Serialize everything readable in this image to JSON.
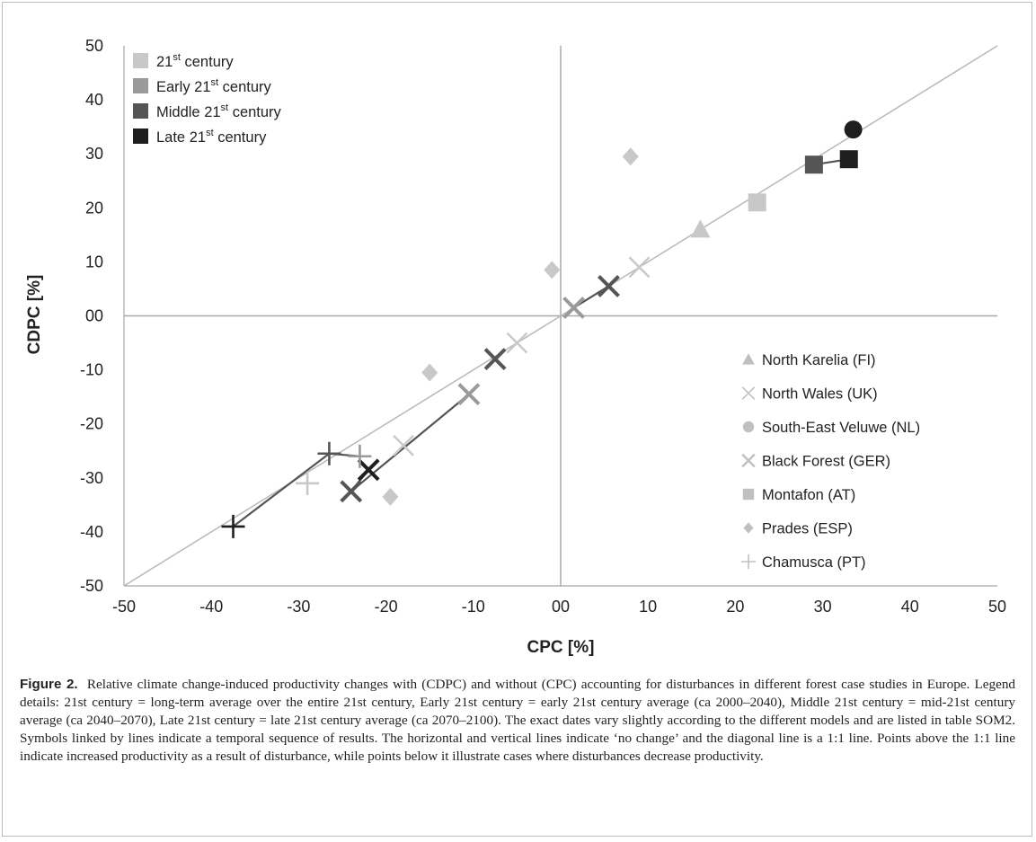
{
  "chart_data": {
    "type": "scatter",
    "xlabel": "CPC [%]",
    "ylabel": "CDPC [%]",
    "xlim": [
      -50,
      50
    ],
    "ylim": [
      -50,
      50
    ],
    "x_ticks": [
      "-50",
      "-40",
      "-30",
      "-20",
      "-10",
      "00",
      "10",
      "20",
      "30",
      "40",
      "50"
    ],
    "y_ticks": [
      "50",
      "40",
      "30",
      "20",
      "10",
      "00",
      "-10",
      "-20",
      "-30",
      "-40",
      "-50"
    ],
    "reference_lines": [
      "x = 0",
      "y = 0",
      "y = x"
    ],
    "period_legend": [
      {
        "base": "21",
        "sup": "st",
        "rest": " century",
        "color": "#c8c8c8"
      },
      {
        "base": "Early 21",
        "sup": "st",
        "rest": " century",
        "color": "#9a9a9a"
      },
      {
        "base": "Middle 21",
        "sup": "st",
        "rest": " century",
        "color": "#555555"
      },
      {
        "base": "Late 21",
        "sup": "st",
        "rest": " century",
        "color": "#1e1e1e"
      }
    ],
    "case_legend": [
      {
        "label": "North Karelia (FI)",
        "symbol": "triangle"
      },
      {
        "label": "North Wales (UK)",
        "symbol": "x-thin"
      },
      {
        "label": "South-East Veluwe (NL)",
        "symbol": "circle"
      },
      {
        "label": "Black Forest (GER)",
        "symbol": "x-thick"
      },
      {
        "label": "Montafon (AT)",
        "symbol": "square"
      },
      {
        "label": "Prades (ESP)",
        "symbol": "diamond"
      },
      {
        "label": "Chamusca (PT)",
        "symbol": "plus"
      }
    ],
    "points": [
      {
        "case": "North Karelia (FI)",
        "symbol": "triangle",
        "period": "21st century",
        "x": 16,
        "y": 16
      },
      {
        "case": "North Wales (UK)",
        "symbol": "x-thin",
        "period": "21st century",
        "x": 9,
        "y": 9
      },
      {
        "case": "North Wales (UK)",
        "symbol": "x-thin",
        "period": "21st century",
        "x": -5,
        "y": -5
      },
      {
        "case": "North Wales (UK)",
        "symbol": "x-thin",
        "period": "21st century",
        "x": -18,
        "y": -24
      },
      {
        "case": "South-East Veluwe (NL)",
        "symbol": "circle",
        "period": "Late 21st century",
        "x": 33.5,
        "y": 34.5
      },
      {
        "case": "Black Forest (GER)",
        "symbol": "x-thick",
        "period": "Early 21st century",
        "x": 1.5,
        "y": 1.5
      },
      {
        "case": "Black Forest (GER)",
        "symbol": "x-thick",
        "period": "Middle 21st century",
        "x": 5.5,
        "y": 5.5
      },
      {
        "case": "Black Forest (GER)",
        "symbol": "x-thick",
        "period": "Early 21st century",
        "x": -10.5,
        "y": -14.5
      },
      {
        "case": "Black Forest (GER)",
        "symbol": "x-thick",
        "period": "Middle 21st century",
        "x": -7.5,
        "y": -8
      },
      {
        "case": "Black Forest (GER)",
        "symbol": "x-thick",
        "period": "Middle 21st century",
        "x": -24,
        "y": -32.5
      },
      {
        "case": "Black Forest (GER)",
        "symbol": "x-thick",
        "period": "Late 21st century",
        "x": -22,
        "y": -28.5
      },
      {
        "case": "Montafon (AT)",
        "symbol": "square",
        "period": "21st century",
        "x": 22.5,
        "y": 21
      },
      {
        "case": "Montafon (AT)",
        "symbol": "square",
        "period": "Middle 21st century",
        "x": 29,
        "y": 28
      },
      {
        "case": "Montafon (AT)",
        "symbol": "square",
        "period": "Late 21st century",
        "x": 33,
        "y": 29
      },
      {
        "case": "Prades (ESP)",
        "symbol": "diamond",
        "period": "21st century",
        "x": 8,
        "y": 29.5
      },
      {
        "case": "Prades (ESP)",
        "symbol": "diamond",
        "period": "21st century",
        "x": -1,
        "y": 8.5
      },
      {
        "case": "Prades (ESP)",
        "symbol": "diamond",
        "period": "21st century",
        "x": -15,
        "y": -10.5
      },
      {
        "case": "Prades (ESP)",
        "symbol": "diamond",
        "period": "21st century",
        "x": -19.5,
        "y": -33.5
      },
      {
        "case": "Chamusca (PT)",
        "symbol": "plus",
        "period": "21st century",
        "x": -29,
        "y": -31
      },
      {
        "case": "Chamusca (PT)",
        "symbol": "plus",
        "period": "Early 21st century",
        "x": -23,
        "y": -26
      },
      {
        "case": "Chamusca (PT)",
        "symbol": "plus",
        "period": "Middle 21st century",
        "x": -26.5,
        "y": -25.5
      },
      {
        "case": "Chamusca (PT)",
        "symbol": "plus",
        "period": "Late 21st century",
        "x": -37.5,
        "y": -39
      }
    ],
    "sequences": [
      {
        "case": "Montafon (AT)",
        "color": "#555555",
        "points": [
          [
            29,
            28
          ],
          [
            33,
            29
          ]
        ]
      },
      {
        "case": "Black Forest (GER)",
        "color": "#555555",
        "points": [
          [
            1.5,
            1.5
          ],
          [
            5.5,
            5.5
          ]
        ]
      },
      {
        "case": "Black Forest (GER)",
        "color": "#555555",
        "points": [
          [
            -10.5,
            -14.5
          ],
          [
            -24,
            -32.5
          ],
          [
            -22,
            -28.5
          ]
        ]
      },
      {
        "case": "Chamusca (PT)",
        "color": "#555555",
        "points": [
          [
            -23,
            -26
          ],
          [
            -26.5,
            -25.5
          ],
          [
            -37.5,
            -39
          ]
        ]
      }
    ]
  },
  "caption": {
    "label": "Figure 2.",
    "text": "Relative climate change-induced productivity changes with (CDPC) and without (CPC) accounting for disturbances in different forest case studies in Europe. Legend details: 21st century = long-term average over the entire 21st century, Early 21st century = early 21st century average (ca 2000–2040), Middle 21st century = mid-21st century average (ca 2040–2070), Late 21st century = late 21st century average (ca 2070–2100). The exact dates vary slightly according to the different models and are listed in table SOM2. Symbols linked by lines indicate a temporal sequence of results. The horizontal and vertical lines indicate ‘no change’ and the diagonal line is a 1:1 line. Points above the 1:1 line indicate increased productivity as a result of disturbance, while points below it illustrate cases where disturbances decrease productivity."
  }
}
